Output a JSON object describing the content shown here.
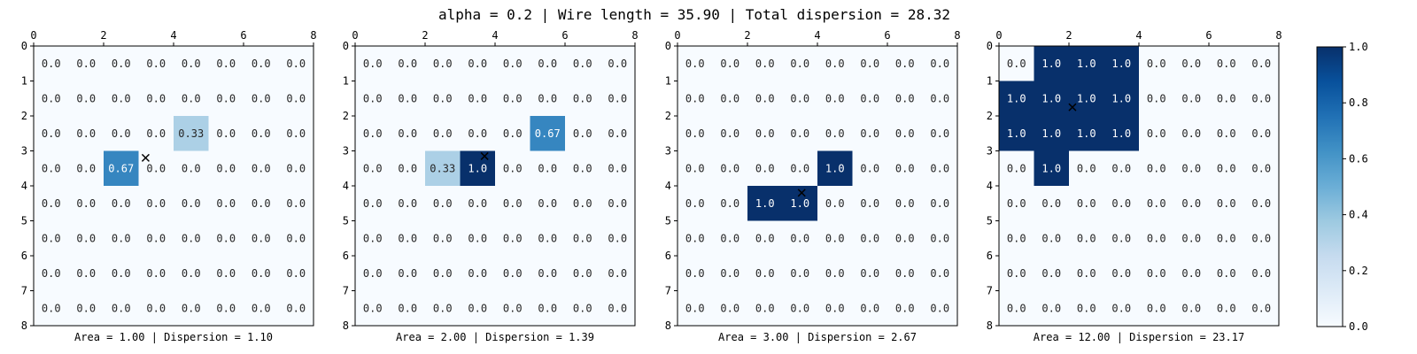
{
  "title": "alpha = 0.2 | Wire length = 35.90 | Total dispersion = 28.32",
  "chart_data": [
    {
      "type": "heatmap",
      "xlabel": "Area = 1.00 | Dispersion = 1.10",
      "xlim": [
        0,
        8
      ],
      "ylim": [
        8,
        0
      ],
      "x_ticks": [
        0,
        2,
        4,
        6,
        8
      ],
      "y_ticks": [
        0,
        1,
        2,
        3,
        4,
        5,
        6,
        7,
        8
      ],
      "values": [
        [
          0,
          0,
          0,
          0,
          0,
          0,
          0,
          0
        ],
        [
          0,
          0,
          0,
          0,
          0,
          0,
          0,
          0
        ],
        [
          0,
          0,
          0,
          0,
          0.33,
          0,
          0,
          0
        ],
        [
          0,
          0,
          0.67,
          0,
          0,
          0,
          0,
          0
        ],
        [
          0,
          0,
          0,
          0,
          0,
          0,
          0,
          0
        ],
        [
          0,
          0,
          0,
          0,
          0,
          0,
          0,
          0
        ],
        [
          0,
          0,
          0,
          0,
          0,
          0,
          0,
          0
        ],
        [
          0,
          0,
          0,
          0,
          0,
          0,
          0,
          0
        ]
      ],
      "labels": [
        [
          "0.0",
          "0.0",
          "0.0",
          "0.0",
          "0.0",
          "0.0",
          "0.0",
          "0.0"
        ],
        [
          "0.0",
          "0.0",
          "0.0",
          "0.0",
          "0.0",
          "0.0",
          "0.0",
          "0.0"
        ],
        [
          "0.0",
          "0.0",
          "0.0",
          "0.0",
          "0.33",
          "0.0",
          "0.0",
          "0.0"
        ],
        [
          "0.0",
          "0.0",
          "0.67",
          "0.0",
          "0.0",
          "0.0",
          "0.0",
          "0.0"
        ],
        [
          "0.0",
          "0.0",
          "0.0",
          "0.0",
          "0.0",
          "0.0",
          "0.0",
          "0.0"
        ],
        [
          "0.0",
          "0.0",
          "0.0",
          "0.0",
          "0.0",
          "0.0",
          "0.0",
          "0.0"
        ],
        [
          "0.0",
          "0.0",
          "0.0",
          "0.0",
          "0.0",
          "0.0",
          "0.0",
          "0.0"
        ],
        [
          "0.0",
          "0.0",
          "0.0",
          "0.0",
          "0.0",
          "0.0",
          "0.0",
          "0.0"
        ]
      ],
      "marker": {
        "x": 3.2,
        "y": 3.2,
        "symbol": "x"
      }
    },
    {
      "type": "heatmap",
      "xlabel": "Area = 2.00 | Dispersion = 1.39",
      "xlim": [
        0,
        8
      ],
      "ylim": [
        8,
        0
      ],
      "x_ticks": [
        0,
        2,
        4,
        6,
        8
      ],
      "y_ticks": [
        0,
        1,
        2,
        3,
        4,
        5,
        6,
        7,
        8
      ],
      "values": [
        [
          0,
          0,
          0,
          0,
          0,
          0,
          0,
          0
        ],
        [
          0,
          0,
          0,
          0,
          0,
          0,
          0,
          0
        ],
        [
          0,
          0,
          0,
          0,
          0,
          0.67,
          0,
          0
        ],
        [
          0,
          0,
          0.33,
          1.0,
          0,
          0,
          0,
          0
        ],
        [
          0,
          0,
          0,
          0,
          0,
          0,
          0,
          0
        ],
        [
          0,
          0,
          0,
          0,
          0,
          0,
          0,
          0
        ],
        [
          0,
          0,
          0,
          0,
          0,
          0,
          0,
          0
        ],
        [
          0,
          0,
          0,
          0,
          0,
          0,
          0,
          0
        ]
      ],
      "labels": [
        [
          "0.0",
          "0.0",
          "0.0",
          "0.0",
          "0.0",
          "0.0",
          "0.0",
          "0.0"
        ],
        [
          "0.0",
          "0.0",
          "0.0",
          "0.0",
          "0.0",
          "0.0",
          "0.0",
          "0.0"
        ],
        [
          "0.0",
          "0.0",
          "0.0",
          "0.0",
          "0.0",
          "0.67",
          "0.0",
          "0.0"
        ],
        [
          "0.0",
          "0.0",
          "0.33",
          "1.0",
          "0.0",
          "0.0",
          "0.0",
          "0.0"
        ],
        [
          "0.0",
          "0.0",
          "0.0",
          "0.0",
          "0.0",
          "0.0",
          "0.0",
          "0.0"
        ],
        [
          "0.0",
          "0.0",
          "0.0",
          "0.0",
          "0.0",
          "0.0",
          "0.0",
          "0.0"
        ],
        [
          "0.0",
          "0.0",
          "0.0",
          "0.0",
          "0.0",
          "0.0",
          "0.0",
          "0.0"
        ],
        [
          "0.0",
          "0.0",
          "0.0",
          "0.0",
          "0.0",
          "0.0",
          "0.0",
          "0.0"
        ]
      ],
      "marker": {
        "x": 3.7,
        "y": 3.15,
        "symbol": "x"
      }
    },
    {
      "type": "heatmap",
      "xlabel": "Area = 3.00 | Dispersion = 2.67",
      "xlim": [
        0,
        8
      ],
      "ylim": [
        8,
        0
      ],
      "x_ticks": [
        0,
        2,
        4,
        6,
        8
      ],
      "y_ticks": [
        0,
        1,
        2,
        3,
        4,
        5,
        6,
        7,
        8
      ],
      "values": [
        [
          0,
          0,
          0,
          0,
          0,
          0,
          0,
          0
        ],
        [
          0,
          0,
          0,
          0,
          0,
          0,
          0,
          0
        ],
        [
          0,
          0,
          0,
          0,
          0,
          0,
          0,
          0
        ],
        [
          0,
          0,
          0,
          0,
          1.0,
          0,
          0,
          0
        ],
        [
          0,
          0,
          1.0,
          1.0,
          0,
          0,
          0,
          0
        ],
        [
          0,
          0,
          0,
          0,
          0,
          0,
          0,
          0
        ],
        [
          0,
          0,
          0,
          0,
          0,
          0,
          0,
          0
        ],
        [
          0,
          0,
          0,
          0,
          0,
          0,
          0,
          0
        ]
      ],
      "labels": [
        [
          "0.0",
          "0.0",
          "0.0",
          "0.0",
          "0.0",
          "0.0",
          "0.0",
          "0.0"
        ],
        [
          "0.0",
          "0.0",
          "0.0",
          "0.0",
          "0.0",
          "0.0",
          "0.0",
          "0.0"
        ],
        [
          "0.0",
          "0.0",
          "0.0",
          "0.0",
          "0.0",
          "0.0",
          "0.0",
          "0.0"
        ],
        [
          "0.0",
          "0.0",
          "0.0",
          "0.0",
          "1.0",
          "0.0",
          "0.0",
          "0.0"
        ],
        [
          "0.0",
          "0.0",
          "1.0",
          "1.0",
          "0.0",
          "0.0",
          "0.0",
          "0.0"
        ],
        [
          "0.0",
          "0.0",
          "0.0",
          "0.0",
          "0.0",
          "0.0",
          "0.0",
          "0.0"
        ],
        [
          "0.0",
          "0.0",
          "0.0",
          "0.0",
          "0.0",
          "0.0",
          "0.0",
          "0.0"
        ],
        [
          "0.0",
          "0.0",
          "0.0",
          "0.0",
          "0.0",
          "0.0",
          "0.0",
          "0.0"
        ]
      ],
      "marker": {
        "x": 3.55,
        "y": 4.2,
        "symbol": "x"
      }
    },
    {
      "type": "heatmap",
      "xlabel": "Area = 12.00 | Dispersion = 23.17",
      "xlim": [
        0,
        8
      ],
      "ylim": [
        8,
        0
      ],
      "x_ticks": [
        0,
        2,
        4,
        6,
        8
      ],
      "y_ticks": [
        0,
        1,
        2,
        3,
        4,
        5,
        6,
        7,
        8
      ],
      "values": [
        [
          0,
          1.0,
          1.0,
          1.0,
          0,
          0,
          0,
          0
        ],
        [
          1.0,
          1.0,
          1.0,
          1.0,
          0,
          0,
          0,
          0
        ],
        [
          1.0,
          1.0,
          1.0,
          1.0,
          0,
          0,
          0,
          0
        ],
        [
          0,
          1.0,
          0,
          0,
          0,
          0,
          0,
          0
        ],
        [
          0,
          0,
          0,
          0,
          0,
          0,
          0,
          0
        ],
        [
          0,
          0,
          0,
          0,
          0,
          0,
          0,
          0
        ],
        [
          0,
          0,
          0,
          0,
          0,
          0,
          0,
          0
        ],
        [
          0,
          0,
          0,
          0,
          0,
          0,
          0,
          0
        ]
      ],
      "labels": [
        [
          "0.0",
          "1.0",
          "1.0",
          "1.0",
          "0.0",
          "0.0",
          "0.0",
          "0.0"
        ],
        [
          "1.0",
          "1.0",
          "1.0",
          "1.0",
          "0.0",
          "0.0",
          "0.0",
          "0.0"
        ],
        [
          "1.0",
          "1.0",
          "1.0",
          "1.0",
          "0.0",
          "0.0",
          "0.0",
          "0.0"
        ],
        [
          "0.0",
          "1.0",
          "0.0",
          "0.0",
          "0.0",
          "0.0",
          "0.0",
          "0.0"
        ],
        [
          "0.0",
          "0.0",
          "0.0",
          "0.0",
          "0.0",
          "0.0",
          "0.0",
          "0.0"
        ],
        [
          "0.0",
          "0.0",
          "0.0",
          "0.0",
          "0.0",
          "0.0",
          "0.0",
          "0.0"
        ],
        [
          "0.0",
          "0.0",
          "0.0",
          "0.0",
          "0.0",
          "0.0",
          "0.0",
          "0.0"
        ],
        [
          "0.0",
          "0.0",
          "0.0",
          "0.0",
          "0.0",
          "0.0",
          "0.0",
          "0.0"
        ]
      ],
      "marker": {
        "x": 2.1,
        "y": 1.75,
        "symbol": "x"
      }
    }
  ],
  "colorbar": {
    "colormap": "Blues",
    "range": [
      0.0,
      1.0
    ],
    "ticks": [
      "0.0",
      "0.2",
      "0.4",
      "0.6",
      "0.8",
      "1.0"
    ],
    "tick_values": [
      0.0,
      0.2,
      0.4,
      0.6,
      0.8,
      1.0
    ]
  }
}
